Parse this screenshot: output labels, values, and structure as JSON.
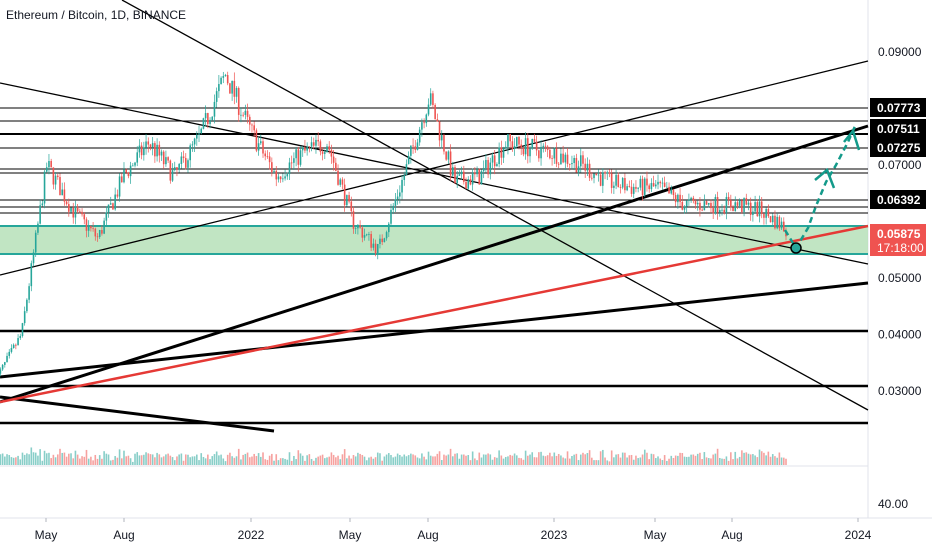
{
  "title": "Ethereum / Bitcoin, 1D, BINANCE",
  "colors": {
    "background": "#ffffff",
    "candle_up": "#26a69a",
    "candle_down": "#ef5350",
    "zone_fill": "#b6e0b8",
    "zone_border": "#26a69a",
    "red_line": "#e53935",
    "arrow": "#139a8a",
    "price_tag": "#ef5350"
  },
  "chart_data": {
    "type": "candlestick",
    "pair": "ETH/BTC",
    "interval": "1D",
    "exchange": "BINANCE",
    "y_scale": "linear",
    "y_axis_ticks": [
      "0.09000",
      "0.07000",
      "0.05000",
      "0.04000",
      "0.03000"
    ],
    "x_axis_ticks": [
      "May",
      "Aug",
      "2022",
      "May",
      "Aug",
      "2023",
      "May",
      "Aug",
      "2024"
    ],
    "volume_axis_label": "40.00",
    "horizontal_levels": [
      "0.07773",
      "0.07511",
      "0.07275",
      "0.06392"
    ],
    "current_price": "0.05875",
    "countdown": "17:18:00",
    "approx_price_path": [
      {
        "month": "2021-03",
        "close": 0.032
      },
      {
        "month": "2021-04",
        "close": 0.04
      },
      {
        "month": "2021-05",
        "close": 0.07
      },
      {
        "month": "2021-06",
        "close": 0.062
      },
      {
        "month": "2021-07",
        "close": 0.057
      },
      {
        "month": "2021-08",
        "close": 0.068
      },
      {
        "month": "2021-09",
        "close": 0.074
      },
      {
        "month": "2021-10",
        "close": 0.068
      },
      {
        "month": "2021-11",
        "close": 0.075
      },
      {
        "month": "2021-12",
        "close": 0.086
      },
      {
        "month": "2022-01",
        "close": 0.076
      },
      {
        "month": "2022-02",
        "close": 0.068
      },
      {
        "month": "2022-03",
        "close": 0.072
      },
      {
        "month": "2022-04",
        "close": 0.074
      },
      {
        "month": "2022-05",
        "close": 0.06
      },
      {
        "month": "2022-06",
        "close": 0.055
      },
      {
        "month": "2022-07",
        "close": 0.068
      },
      {
        "month": "2022-08",
        "close": 0.082
      },
      {
        "month": "2022-09",
        "close": 0.067
      },
      {
        "month": "2022-10",
        "close": 0.068
      },
      {
        "month": "2022-11",
        "close": 0.074
      },
      {
        "month": "2022-12",
        "close": 0.073
      },
      {
        "month": "2023-01",
        "close": 0.072
      },
      {
        "month": "2023-02",
        "close": 0.07
      },
      {
        "month": "2023-03",
        "close": 0.067
      },
      {
        "month": "2023-04",
        "close": 0.066
      },
      {
        "month": "2023-05",
        "close": 0.066
      },
      {
        "month": "2023-06",
        "close": 0.063
      },
      {
        "month": "2023-07",
        "close": 0.063
      },
      {
        "month": "2023-08",
        "close": 0.063
      },
      {
        "month": "2023-09",
        "close": 0.062
      },
      {
        "month": "2023-10",
        "close": 0.05875
      }
    ]
  }
}
